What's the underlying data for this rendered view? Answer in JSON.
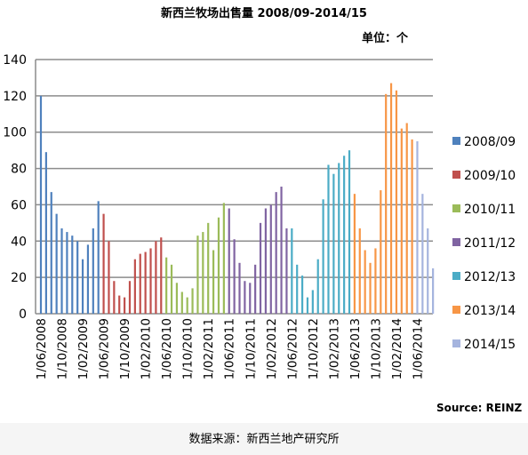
{
  "header": {
    "title": "新西兰牧场出售量  2008/09-2014/15",
    "unit": "单位：个"
  },
  "footer": {
    "source_note": "Source: REINZ",
    "data_source": "数据来源：新西兰地产研究所"
  },
  "chart_data": {
    "type": "bar",
    "title": "",
    "xlabel": "",
    "ylabel": "",
    "ylim": [
      0,
      140
    ],
    "yticks": [
      "0",
      "20",
      "40",
      "60",
      "80",
      "100",
      "120",
      "140"
    ],
    "grid": true,
    "legend_position": "right",
    "x_tick_labels": [
      "1/06/2008",
      "1/10/2008",
      "1/02/2009",
      "1/06/2009",
      "1/10/2009",
      "1/02/2010",
      "1/06/2010",
      "1/10/2010",
      "1/02/2011",
      "1/06/2011",
      "1/10/2011",
      "1/02/2012",
      "1/06/2012",
      "1/10/2012",
      "1/02/2013",
      "1/06/2013",
      "1/10/2013",
      "1/02/2014",
      "1/06/2014"
    ],
    "series": [
      {
        "name": "2008/09",
        "color": "#4f81bd",
        "values": [
          120,
          89,
          67,
          55,
          47,
          45,
          43,
          40,
          30,
          38,
          47,
          62
        ]
      },
      {
        "name": "2009/10",
        "color": "#c0504d",
        "values": [
          55,
          40,
          18,
          10,
          9,
          18,
          30,
          33,
          34,
          36,
          40,
          42
        ]
      },
      {
        "name": "2010/11",
        "color": "#9bbb59",
        "values": [
          31,
          27,
          17,
          12,
          9,
          14,
          43,
          45,
          50,
          35,
          53,
          61
        ]
      },
      {
        "name": "2011/12",
        "color": "#8064a2",
        "values": [
          58,
          41,
          28,
          18,
          17,
          27,
          50,
          58,
          60,
          67,
          70,
          47
        ]
      },
      {
        "name": "2012/13",
        "color": "#4bacc6",
        "values": [
          47,
          27,
          21,
          9,
          13,
          30,
          63,
          82,
          77,
          83,
          87,
          90
        ]
      },
      {
        "name": "2013/14",
        "color": "#f79646",
        "values": [
          66,
          47,
          35,
          28,
          36,
          68,
          121,
          127,
          123,
          102,
          105,
          96
        ]
      },
      {
        "name": "2014/15",
        "color": "#a5b4de",
        "values": [
          95,
          66,
          47,
          25
        ]
      }
    ]
  }
}
